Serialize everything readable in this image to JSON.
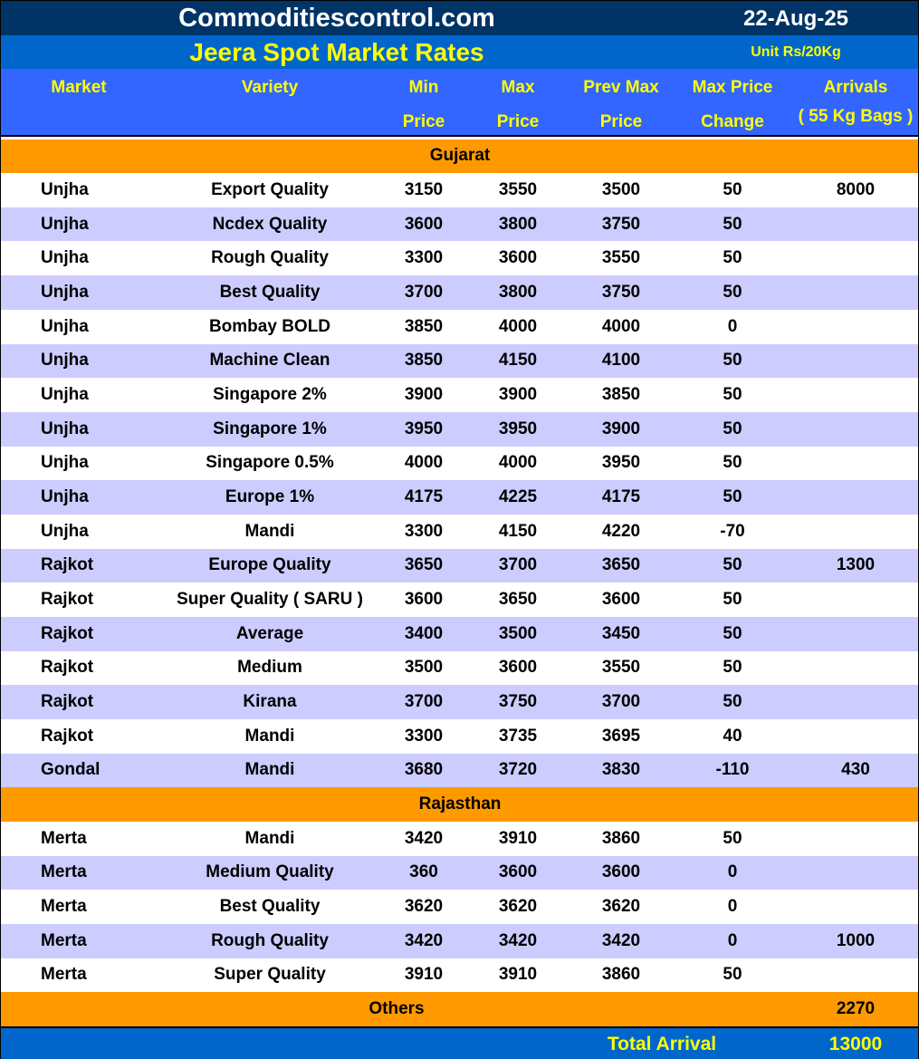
{
  "site_title": "Commoditiescontrol.com",
  "date": "22-Aug-25",
  "report_title": "Jeera Spot Market Rates",
  "unit": "Unit Rs/20Kg",
  "columns": {
    "market": "Market",
    "variety": "Variety",
    "min1": "Min",
    "min2": "Price",
    "max1": "Max",
    "max2": "Price",
    "prev1": "Prev Max",
    "prev2": "Price",
    "chg1": "Max Price",
    "chg2": "Change",
    "arr1": "Arrivals",
    "arr2": "( 55 Kg Bags )"
  },
  "colors": {
    "top": "#003366",
    "sub": "#0066CC",
    "header": "#3366FF",
    "section": "#FF9900",
    "alt_row": "#CCCCFF",
    "header_text": "#FFFF00"
  },
  "sections": [
    {
      "name": "Gujarat",
      "rows": [
        [
          "Unjha",
          "Export Quality",
          "3150",
          "3550",
          "3500",
          "50",
          "8000"
        ],
        [
          "Unjha",
          "Ncdex Quality",
          "3600",
          "3800",
          "3750",
          "50",
          ""
        ],
        [
          "Unjha",
          "Rough Quality",
          "3300",
          "3600",
          "3550",
          "50",
          ""
        ],
        [
          "Unjha",
          "Best Quality",
          "3700",
          "3800",
          "3750",
          "50",
          ""
        ],
        [
          "Unjha",
          "Bombay BOLD",
          "3850",
          "4000",
          "4000",
          "0",
          ""
        ],
        [
          "Unjha",
          "Machine Clean",
          "3850",
          "4150",
          "4100",
          "50",
          ""
        ],
        [
          "Unjha",
          "Singapore 2%",
          "3900",
          "3900",
          "3850",
          "50",
          ""
        ],
        [
          "Unjha",
          "Singapore 1%",
          "3950",
          "3950",
          "3900",
          "50",
          ""
        ],
        [
          "Unjha",
          "Singapore 0.5%",
          "4000",
          "4000",
          "3950",
          "50",
          ""
        ],
        [
          "Unjha",
          "Europe 1%",
          "4175",
          "4225",
          "4175",
          "50",
          ""
        ],
        [
          "Unjha",
          "Mandi",
          "3300",
          "4150",
          "4220",
          "-70",
          ""
        ],
        [
          "Rajkot",
          "Europe Quality",
          "3650",
          "3700",
          "3650",
          "50",
          "1300"
        ],
        [
          "Rajkot",
          "Super Quality ( SARU )",
          "3600",
          "3650",
          "3600",
          "50",
          ""
        ],
        [
          "Rajkot",
          "Average",
          "3400",
          "3500",
          "3450",
          "50",
          ""
        ],
        [
          "Rajkot",
          "Medium",
          "3500",
          "3600",
          "3550",
          "50",
          ""
        ],
        [
          "Rajkot",
          "Kirana",
          "3700",
          "3750",
          "3700",
          "50",
          ""
        ],
        [
          "Rajkot",
          "Mandi",
          "3300",
          "3735",
          "3695",
          "40",
          ""
        ],
        [
          "Gondal",
          "Mandi",
          "3680",
          "3720",
          "3830",
          "-110",
          "430"
        ]
      ]
    },
    {
      "name": "Rajasthan",
      "rows": [
        [
          "Merta",
          "Mandi",
          "3420",
          "3910",
          "3860",
          "50",
          ""
        ],
        [
          "Merta",
          "Medium Quality",
          "360",
          "3600",
          "3600",
          "0",
          ""
        ],
        [
          "Merta",
          "Best Quality",
          "3620",
          "3620",
          "3620",
          "0",
          ""
        ],
        [
          "Merta",
          "Rough Quality",
          "3420",
          "3420",
          "3420",
          "0",
          "1000"
        ],
        [
          "Merta",
          "Super Quality",
          "3910",
          "3910",
          "3860",
          "50",
          ""
        ]
      ]
    }
  ],
  "others": {
    "label": "Others",
    "value": "2270"
  },
  "total": {
    "label": "Total Arrival",
    "value": "13000"
  }
}
